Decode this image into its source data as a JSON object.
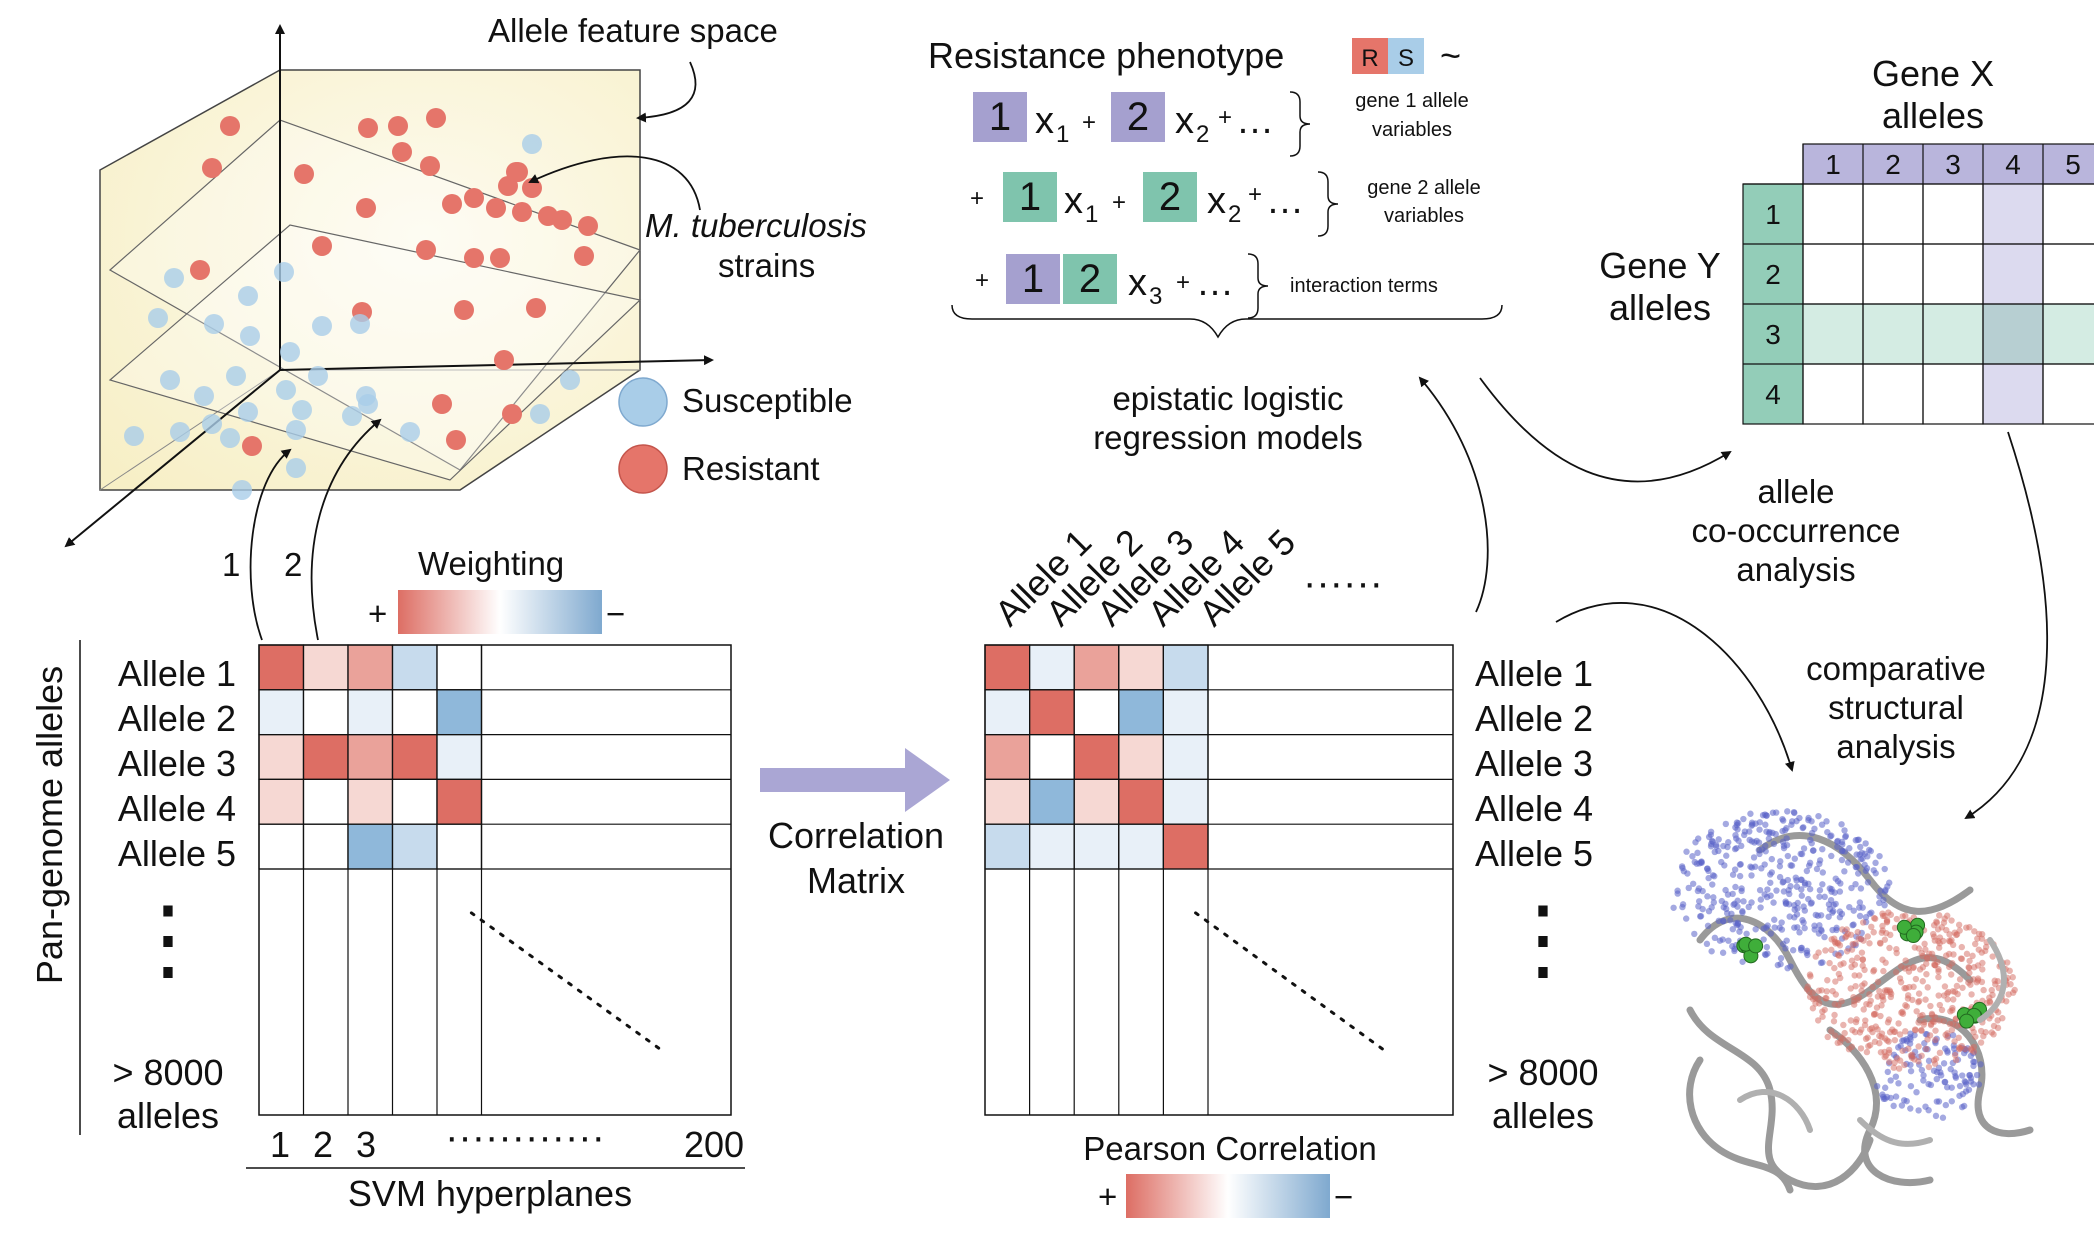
{
  "title_feature_space": "Allele feature space",
  "strains_label": {
    "italic": "M. tuberculosis",
    "rest": "strains"
  },
  "legend": {
    "susceptible": "Susceptible",
    "resistant": "Resistant",
    "susceptible_color": "#a9cde8",
    "resistant_color": "#e5756a"
  },
  "hyperplane_arrows": [
    "1",
    "2"
  ],
  "weighting": {
    "title": "Weighting",
    "plus": "+",
    "minus": "−"
  },
  "matrix_left": {
    "ylabel": "Pan-genome alleles",
    "rows": [
      "Allele 1",
      "Allele 2",
      "Allele 3",
      "Allele 4",
      "Allele 5"
    ],
    "dots": "⋮",
    "bottom_row": [
      "> 8000",
      "alleles"
    ],
    "col_labels": [
      "1",
      "2",
      "3"
    ],
    "col_dots": "············",
    "col_end": "200",
    "xlabel": "SVM hyperplanes"
  },
  "arrow_label": [
    "Correlation",
    "Matrix"
  ],
  "matrix_right": {
    "col_labels": [
      "Allele 1",
      "Allele 2",
      "Allele 3",
      "Allele 4",
      "Allele 5"
    ],
    "col_dots": "······",
    "rows": [
      "Allele 1",
      "Allele 2",
      "Allele 3",
      "Allele 4",
      "Allele 5"
    ],
    "bottom_row": [
      "> 8000",
      "alleles"
    ],
    "legend_title": "Pearson Correlation",
    "plus": "+",
    "minus": "−"
  },
  "regression": {
    "title": "Resistance phenotype",
    "r": "R",
    "s": "S",
    "tilde": "~",
    "gene1": [
      "gene 1 allele",
      "variables"
    ],
    "gene2": [
      "gene 2 allele",
      "variables"
    ],
    "interaction": "interaction terms",
    "model_label": [
      "epistatic logistic",
      "regression models"
    ]
  },
  "cooccurrence": {
    "gene_x": [
      "Gene X",
      "alleles"
    ],
    "gene_y": [
      "Gene Y",
      "alleles"
    ],
    "x_labels": [
      "1",
      "2",
      "3",
      "4",
      "5"
    ],
    "y_labels": [
      "1",
      "2",
      "3",
      "4"
    ],
    "caption": [
      "allele",
      "co-occurrence",
      "analysis"
    ]
  },
  "structural": {
    "caption": [
      "comparative",
      "structural",
      "analysis"
    ]
  },
  "colors": {
    "purple": "#a5a0cf",
    "teal": "#7fc4ad",
    "arrow": "#aaa6d4",
    "feature_bg": "#fbf6dc",
    "red_strong": "#dd6e64",
    "blue_strong": "#8fb8da"
  }
}
